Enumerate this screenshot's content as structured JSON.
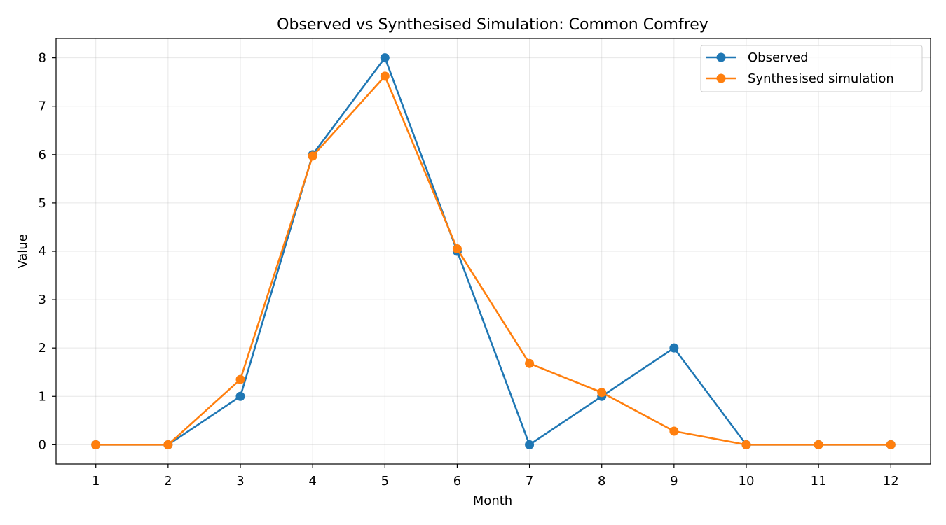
{
  "chart_data": {
    "type": "line",
    "title": "Observed vs Synthesised Simulation: Common Comfrey",
    "xlabel": "Month",
    "ylabel": "Value",
    "x": [
      1,
      2,
      3,
      4,
      5,
      6,
      7,
      8,
      9,
      10,
      11,
      12
    ],
    "x_tick_labels": [
      "1",
      "2",
      "3",
      "4",
      "5",
      "6",
      "7",
      "8",
      "9",
      "10",
      "11",
      "12"
    ],
    "y_ticks": [
      0,
      1,
      2,
      3,
      4,
      5,
      6,
      7,
      8
    ],
    "y_tick_labels": [
      "0",
      "1",
      "2",
      "3",
      "4",
      "5",
      "6",
      "7",
      "8"
    ],
    "xlim": [
      0.45,
      12.55
    ],
    "ylim": [
      -0.4,
      8.4
    ],
    "grid": true,
    "legend_position": "top-right",
    "series": [
      {
        "name": "Observed",
        "color": "#1f77b4",
        "marker": "circle",
        "values": [
          0,
          0,
          1,
          6,
          8,
          4,
          0,
          1,
          2,
          0,
          0,
          0
        ]
      },
      {
        "name": "Synthesised simulation",
        "color": "#ff7f0e",
        "marker": "circle",
        "values": [
          0,
          0,
          1.35,
          5.97,
          7.62,
          4.05,
          1.68,
          1.08,
          0.28,
          0,
          0,
          0
        ]
      }
    ]
  }
}
